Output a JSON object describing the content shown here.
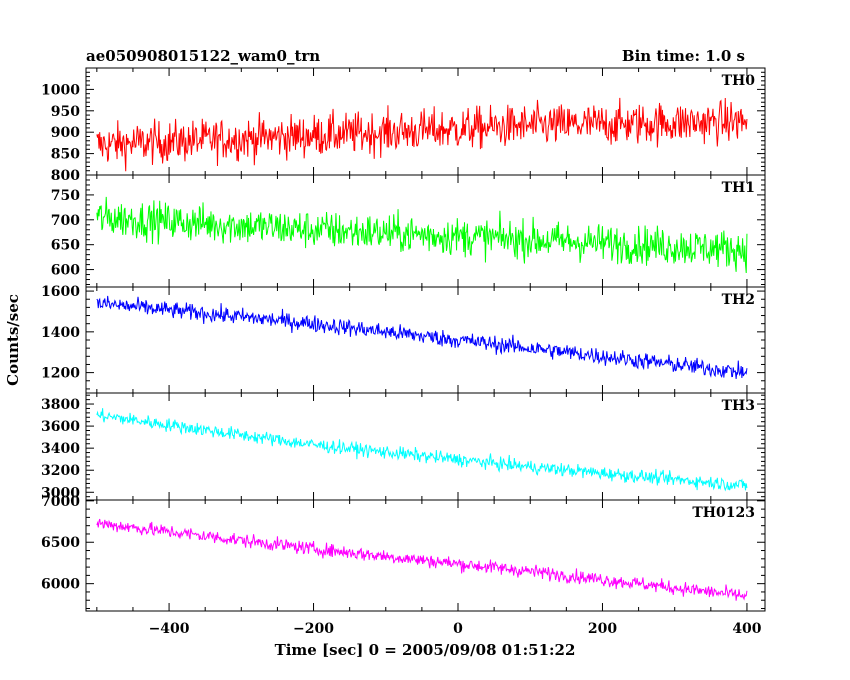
{
  "chart_data": {
    "type": "line",
    "title": "ae050908015122_wam0_trn",
    "bin_time_label": "Bin time: 1.0 s",
    "xlabel": "Time [sec] 0 = 2005/09/08 01:51:22",
    "ylabel": "Counts/sec",
    "xlim": [
      -515,
      425
    ],
    "x_ticks": [
      -400,
      -200,
      0,
      200,
      400
    ],
    "x_range": [
      -500,
      400
    ],
    "x_step": 1,
    "panels": [
      {
        "name": "TH0",
        "color": "#ff0000",
        "ylim": [
          800,
          1050
        ],
        "yticks": [
          800,
          850,
          900,
          950,
          1000
        ],
        "trend": [
          [
            -500,
            870
          ],
          [
            -300,
            885
          ],
          [
            -100,
            900
          ],
          [
            100,
            915
          ],
          [
            400,
            925
          ]
        ],
        "noise": 45,
        "clip": true
      },
      {
        "name": "TH1",
        "color": "#00ff00",
        "ylim": [
          565,
          790
        ],
        "yticks": [
          600,
          650,
          700,
          750
        ],
        "trend": [
          [
            -500,
            705
          ],
          [
            -200,
            680
          ],
          [
            100,
            660
          ],
          [
            400,
            640
          ]
        ],
        "noise": 35,
        "clip": true
      },
      {
        "name": "TH2",
        "color": "#0000ff",
        "ylim": [
          1100,
          1620
        ],
        "yticks": [
          1200,
          1400,
          1600
        ],
        "trend": [
          [
            -500,
            1540
          ],
          [
            -200,
            1440
          ],
          [
            100,
            1320
          ],
          [
            400,
            1200
          ]
        ],
        "noise": 38,
        "clip": true
      },
      {
        "name": "TH3",
        "color": "#00ffff",
        "ylim": [
          2930,
          3900
        ],
        "yticks": [
          3000,
          3200,
          3400,
          3600,
          3800
        ],
        "trend": [
          [
            -500,
            3700
          ],
          [
            -200,
            3430
          ],
          [
            100,
            3230
          ],
          [
            400,
            3060
          ]
        ],
        "noise": 55,
        "clip": true
      },
      {
        "name": "TH0123",
        "color": "#ff00ff",
        "ylim": [
          5670,
          7010
        ],
        "yticks": [
          6000,
          6500,
          7000
        ],
        "trend": [
          [
            -500,
            6730
          ],
          [
            -200,
            6420
          ],
          [
            100,
            6150
          ],
          [
            400,
            5850
          ]
        ],
        "noise": 75,
        "clip": true
      }
    ]
  }
}
